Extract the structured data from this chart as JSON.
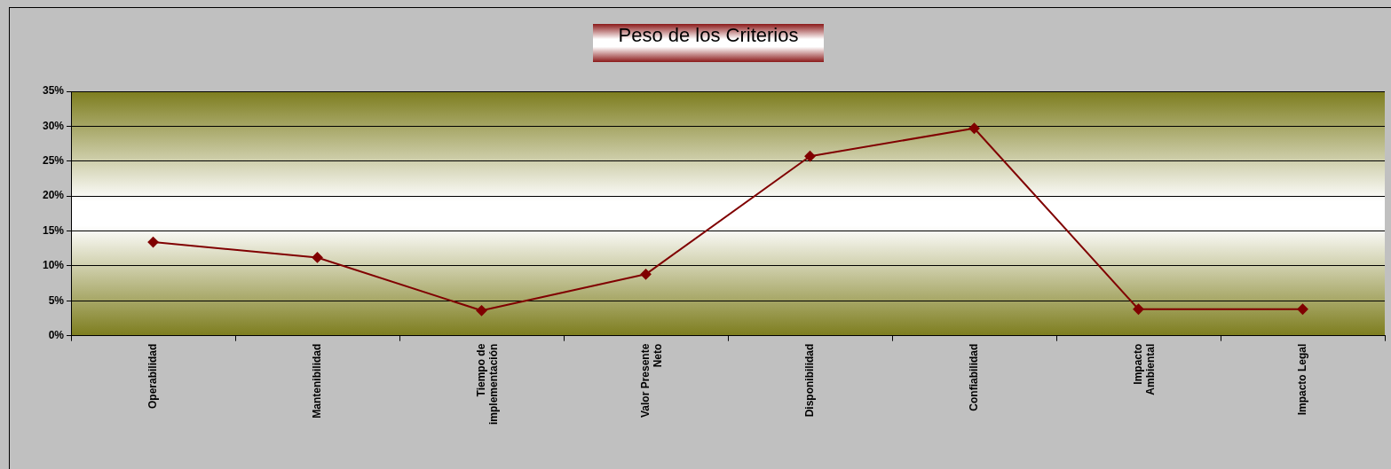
{
  "chart_data": {
    "type": "line",
    "title": "Peso de los Criterios",
    "categories": [
      "Operabilidad",
      "Mantenibilidad",
      "Tiempo de\nimplementación",
      "Valor Presente\nNeto",
      "Disponibilidad",
      "Confiabilidad",
      "Impacto\nAmbiental",
      "Impacto Legal"
    ],
    "series": [
      {
        "color": "#800000",
        "values": [
          13.4,
          11.2,
          3.6,
          8.8,
          25.7,
          29.7,
          3.8,
          3.8
        ]
      }
    ],
    "ylim": [
      0,
      35
    ],
    "yticks": [
      {
        "value": 0,
        "label": "0%"
      },
      {
        "value": 5,
        "label": "5%"
      },
      {
        "value": 10,
        "label": "10%"
      },
      {
        "value": 15,
        "label": "15%"
      },
      {
        "value": 20,
        "label": "20%"
      },
      {
        "value": 25,
        "label": "25%"
      },
      {
        "value": 30,
        "label": "30%"
      },
      {
        "value": 35,
        "label": "35%"
      }
    ],
    "grid": "y",
    "marker": "diamond",
    "line_style": "solid",
    "legend": false
  }
}
